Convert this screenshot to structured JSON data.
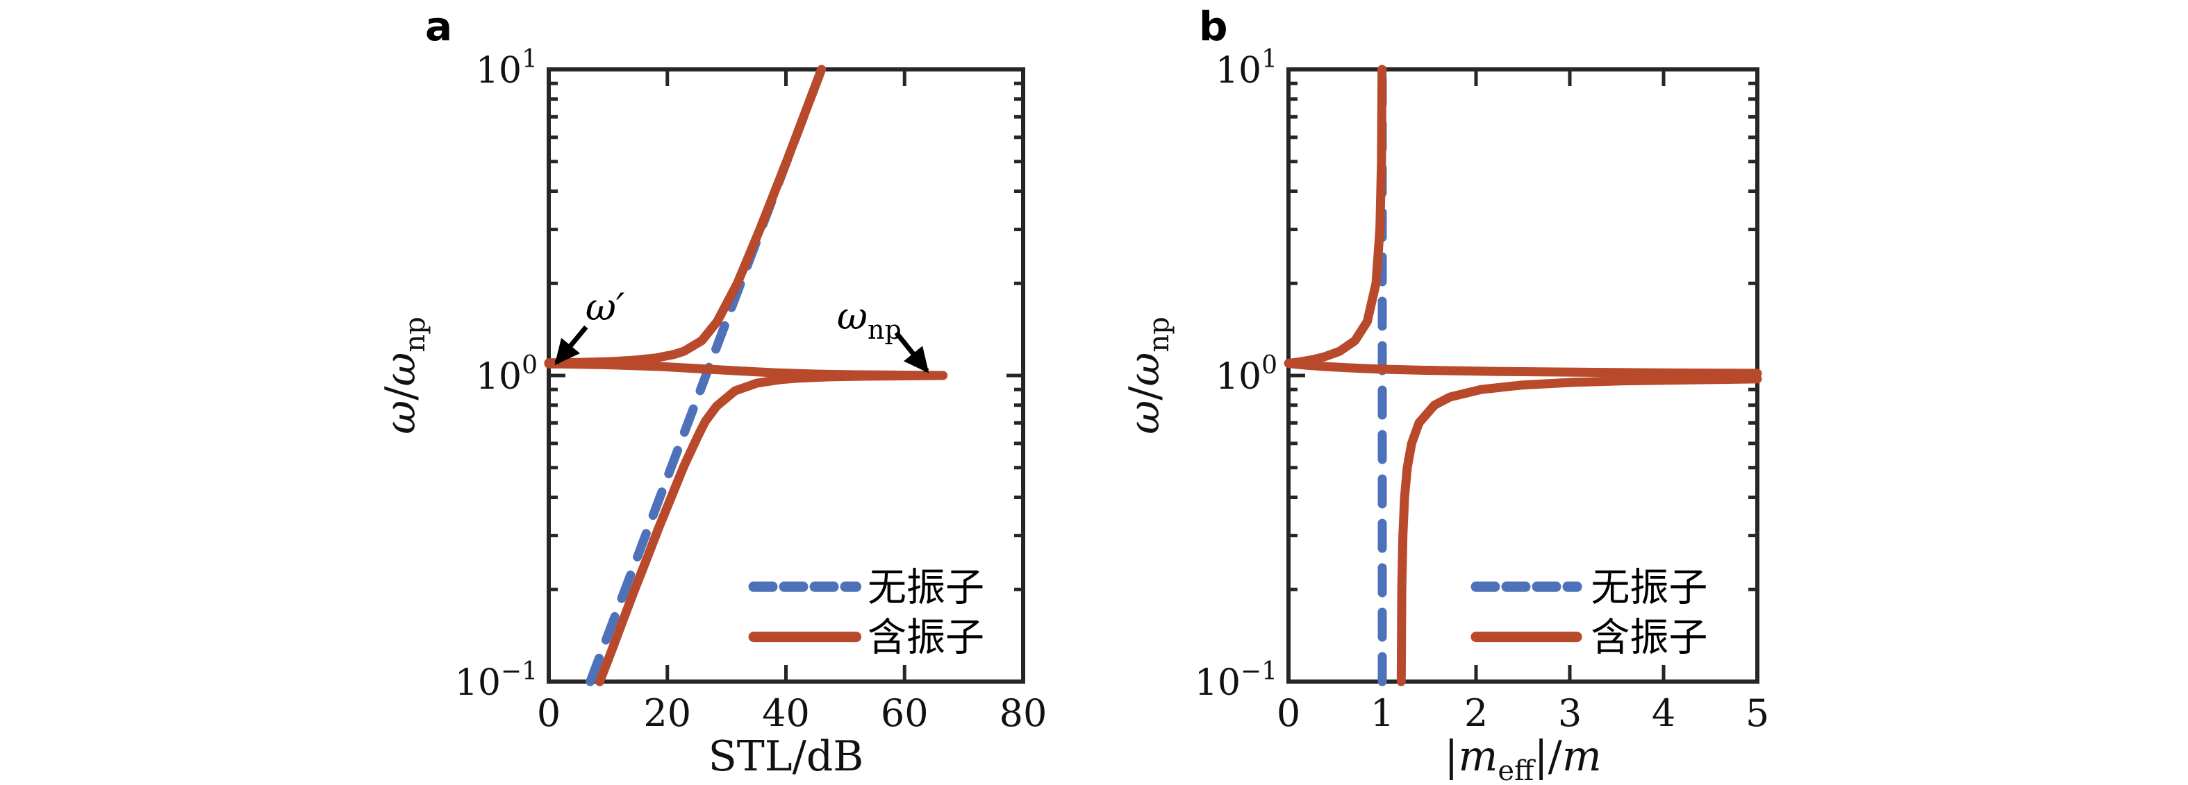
{
  "figure": {
    "background": "#ffffff",
    "panels": [
      {
        "label": "a"
      },
      {
        "label": "b"
      }
    ]
  },
  "colors": {
    "no_oscillator": "#4d72b9",
    "with_oscillator": "#b8492a",
    "axis": "#262626",
    "text": "#111111",
    "annotation": "#000000"
  },
  "legend": {
    "position": "lower right",
    "items": [
      {
        "label": "无振子",
        "style": "dashed",
        "color_key": "no_oscillator"
      },
      {
        "label": "含振子",
        "style": "solid",
        "color_key": "with_oscillator"
      }
    ]
  },
  "chart_data": [
    {
      "id": "a",
      "type": "line",
      "xlabel": "STL/dB",
      "ylabel": "ω/ω_np",
      "ylabel_parts": {
        "n1": "ω",
        "slash": "/",
        "n2": "ω",
        "sub": "np"
      },
      "xlim": [
        0,
        80
      ],
      "ylim": [
        0.1,
        10
      ],
      "yscale": "log",
      "grid": false,
      "x_ticks": [
        0,
        20,
        40,
        60,
        80
      ],
      "x_tick_labels": [
        "0",
        "20",
        "40",
        "60",
        "80"
      ],
      "y_ticks": [
        10,
        1,
        0.1
      ],
      "y_tick_labels": [
        [
          "10",
          "1"
        ],
        [
          "10",
          "0"
        ],
        [
          "10",
          "−1"
        ]
      ],
      "y_minor_ticks": [
        0.2,
        0.3,
        0.4,
        0.5,
        0.6,
        0.7,
        0.8,
        0.9,
        2,
        3,
        4,
        5,
        6,
        7,
        8,
        9
      ],
      "series": [
        {
          "name": "无振子",
          "role": "no_oscillator",
          "dashed": true,
          "points": [
            [
              7.0,
              0.1
            ],
            [
              46.0,
              10
            ]
          ]
        },
        {
          "name": "含振子",
          "role": "with_oscillator",
          "dashed": false,
          "points": [
            [
              8.6,
              0.1
            ],
            [
              10.6,
              0.126
            ],
            [
              12.5,
              0.158
            ],
            [
              14.5,
              0.2
            ],
            [
              16.5,
              0.251
            ],
            [
              18.5,
              0.316
            ],
            [
              20.6,
              0.398
            ],
            [
              22.7,
              0.501
            ],
            [
              25.1,
              0.631
            ],
            [
              26.4,
              0.708
            ],
            [
              28.3,
              0.794
            ],
            [
              31.4,
              0.891
            ],
            [
              35.1,
              0.944
            ],
            [
              39.1,
              0.97
            ],
            [
              41.9,
              0.98
            ],
            [
              47.3,
              0.99
            ],
            [
              52.9,
              0.995
            ],
            [
              60.7,
              0.998
            ],
            [
              66.5,
              1.0
            ],
            [
              60.8,
              1.002
            ],
            [
              51.9,
              1.005
            ],
            [
              45.5,
              1.01
            ],
            [
              38.6,
              1.02
            ],
            [
              33.9,
              1.03
            ],
            [
              26.5,
              1.05
            ],
            [
              18.7,
              1.07
            ],
            [
              9.4,
              1.085
            ],
            [
              3.3,
              1.09
            ],
            [
              0,
              1.0916
            ],
            [
              0,
              1.0996
            ],
            [
              5.0,
              1.103
            ],
            [
              10.2,
              1.11
            ],
            [
              14.0,
              1.12
            ],
            [
              18.0,
              1.14
            ],
            [
              21.0,
              1.17
            ],
            [
              22.8,
              1.2
            ],
            [
              25.8,
              1.3
            ],
            [
              28.4,
              1.5
            ],
            [
              31.8,
              2.0
            ],
            [
              35.6,
              3.0
            ],
            [
              40.1,
              5.0
            ],
            [
              46.0,
              10.0
            ]
          ]
        }
      ],
      "annotations": [
        {
          "text": "ω′",
          "sub": "",
          "text_at": [
            6.2,
            1.52
          ],
          "arrow_from": [
            6.3,
            1.44
          ],
          "arrow_to": [
            1.3,
            1.1
          ]
        },
        {
          "text": "ω",
          "sub": "np",
          "text_at": [
            48.6,
            1.42
          ],
          "arrow_from": [
            58.6,
            1.38
          ],
          "arrow_to": [
            63.8,
            1.035
          ]
        }
      ]
    },
    {
      "id": "b",
      "type": "line",
      "xlabel": "|m_eff|/m",
      "xlabel_parts": {
        "pre": "|",
        "m1": "m",
        "sub": "eff",
        "mid": "|/",
        "m2": "m"
      },
      "ylabel": "ω/ω_np",
      "ylabel_parts": {
        "n1": "ω",
        "slash": "/",
        "n2": "ω",
        "sub": "np"
      },
      "xlim": [
        0,
        5
      ],
      "ylim": [
        0.1,
        10
      ],
      "yscale": "log",
      "grid": false,
      "x_ticks": [
        0,
        1,
        2,
        3,
        4,
        5
      ],
      "x_tick_labels": [
        "0",
        "1",
        "2",
        "3",
        "4",
        "5"
      ],
      "y_ticks": [
        10,
        1,
        0.1
      ],
      "y_tick_labels": [
        [
          "10",
          "1"
        ],
        [
          "10",
          "0"
        ],
        [
          "10",
          "−1"
        ]
      ],
      "y_minor_ticks": [
        0.2,
        0.3,
        0.4,
        0.5,
        0.6,
        0.7,
        0.8,
        0.9,
        2,
        3,
        4,
        5,
        6,
        7,
        8,
        9
      ],
      "series": [
        {
          "name": "无振子",
          "role": "no_oscillator",
          "dashed": true,
          "points": [
            [
              1,
              0.1
            ],
            [
              1,
              10
            ]
          ]
        },
        {
          "name": "含振子",
          "role": "with_oscillator",
          "dashed": false,
          "points": [
            [
              1.202,
              0.1
            ],
            [
              1.208,
              0.2
            ],
            [
              1.22,
              0.3
            ],
            [
              1.238,
              0.4
            ],
            [
              1.267,
              0.5
            ],
            [
              1.313,
              0.6
            ],
            [
              1.392,
              0.7
            ],
            [
              1.556,
              0.8
            ],
            [
              1.721,
              0.85
            ],
            [
              2.053,
              0.9
            ],
            [
              2.48,
              0.93
            ],
            [
              3.051,
              0.95
            ],
            [
              3.551,
              0.96
            ],
            [
              5.0,
              0.9747
            ],
            null,
            [
              5.0,
              1.0165
            ],
            [
              3.941,
              1.02
            ],
            [
              2.28,
              1.03
            ],
            [
              1.451,
              1.04
            ],
            [
              0.951,
              1.05
            ],
            [
              0.618,
              1.06
            ],
            [
              0.38,
              1.07
            ],
            [
              0.202,
              1.08
            ],
            [
              0.063,
              1.09
            ],
            [
              0,
              1.0954
            ],
            [
              0.048,
              1.1
            ],
            [
              0.138,
              1.11
            ],
            [
              0.278,
              1.13
            ],
            [
              0.38,
              1.15
            ],
            [
              0.545,
              1.2
            ],
            [
              0.71,
              1.3
            ],
            [
              0.84,
              1.5
            ],
            [
              0.933,
              2.0
            ],
            [
              0.975,
              3.0
            ],
            [
              0.992,
              5.0
            ],
            [
              0.998,
              10.0
            ]
          ]
        }
      ],
      "annotations": []
    }
  ]
}
